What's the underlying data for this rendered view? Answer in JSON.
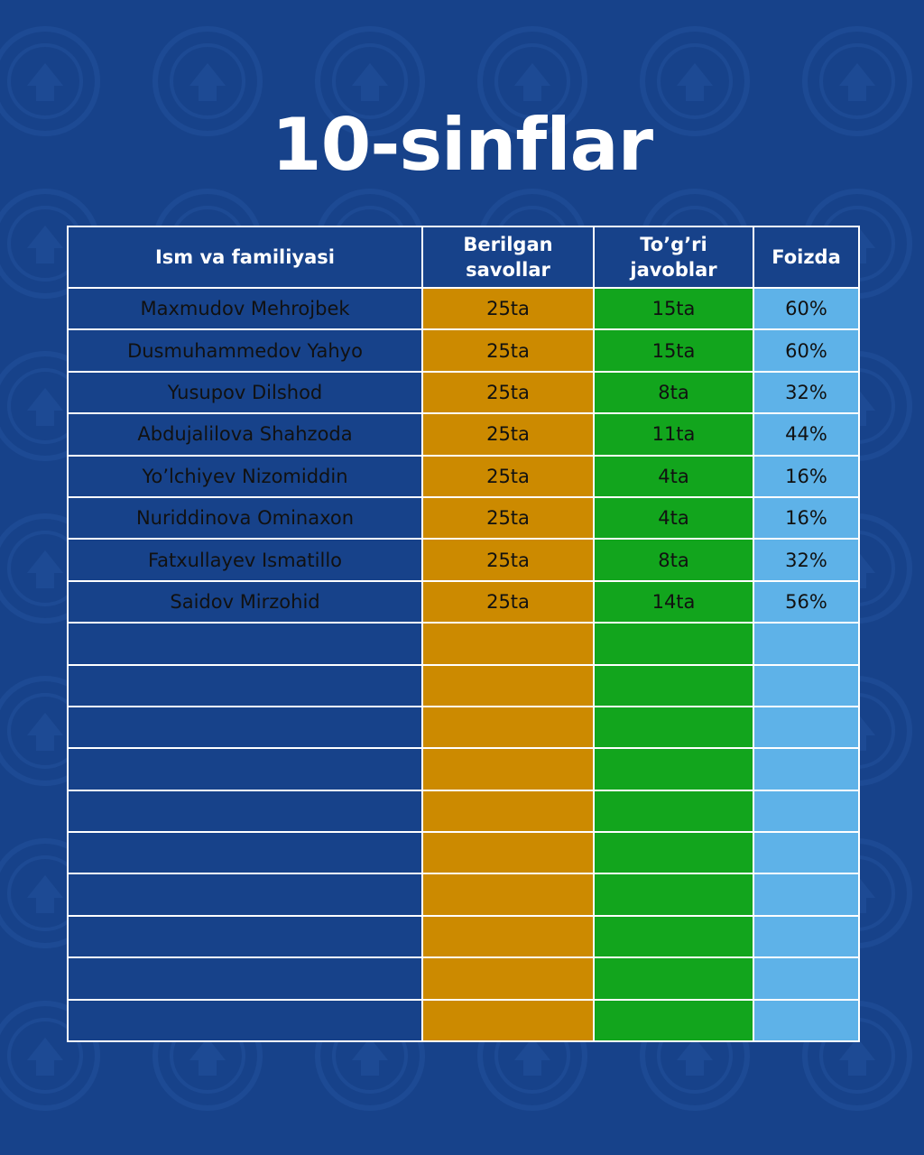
{
  "title": "10-sinflar",
  "table": {
    "headers": [
      "Ism va familiyasi",
      "Berilgan savollar",
      "To’g’ri javoblar",
      "Foizda"
    ],
    "rows": [
      {
        "name": "Maxmudov Mehrojbek",
        "given": "25ta",
        "correct": "15ta",
        "percent": "60%"
      },
      {
        "name": "Dusmuhammedov Yahyo",
        "given": "25ta",
        "correct": "15ta",
        "percent": "60%"
      },
      {
        "name": "Yusupov Dilshod",
        "given": "25ta",
        "correct": "8ta",
        "percent": "32%"
      },
      {
        "name": "Abdujalilova Shahzoda",
        "given": "25ta",
        "correct": "11ta",
        "percent": "44%"
      },
      {
        "name": "Yo’lchiyev Nizomiddin",
        "given": "25ta",
        "correct": "4ta",
        "percent": "16%"
      },
      {
        "name": "Nuriddinova Ominaxon",
        "given": "25ta",
        "correct": "4ta",
        "percent": "16%"
      },
      {
        "name": "Fatxullayev Ismatillo",
        "given": "25ta",
        "correct": "8ta",
        "percent": "32%"
      },
      {
        "name": "Saidov Mirzohid",
        "given": "25ta",
        "correct": "14ta",
        "percent": "56%"
      }
    ],
    "empty_rows": 10
  },
  "colors": {
    "background": "#17428a",
    "given_column": "#cc8a00",
    "correct_column": "#12a51d",
    "percent_column": "#5eb2e8",
    "border": "#ffffff"
  }
}
